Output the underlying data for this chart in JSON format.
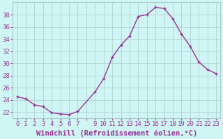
{
  "x": [
    0,
    1,
    2,
    3,
    4,
    5,
    6,
    7,
    9,
    10,
    11,
    12,
    13,
    14,
    15,
    16,
    17,
    18,
    19,
    20,
    21,
    22,
    23
  ],
  "y": [
    24.5,
    24.2,
    23.2,
    22.9,
    21.9,
    21.7,
    21.6,
    22.1,
    25.3,
    27.5,
    31.0,
    33.0,
    34.5,
    37.7,
    38.0,
    39.2,
    39.0,
    37.3,
    34.8,
    32.8,
    30.2,
    29.0,
    28.3
  ],
  "line_color": "#993399",
  "marker_color": "#993399",
  "bg_color": "#cff5f5",
  "grid_color": "#aacccc",
  "xlabel": "Windchill (Refroidissement éolien,°C)",
  "ylim": [
    21.0,
    40.0
  ],
  "xlim": [
    0,
    23
  ],
  "yticks": [
    22,
    24,
    26,
    28,
    30,
    32,
    34,
    36,
    38
  ],
  "xtick_labels": [
    "0",
    "1",
    "2",
    "3",
    "4",
    "5",
    "6",
    "7",
    "",
    "9",
    "10",
    "11",
    "12",
    "13",
    "14",
    "15",
    "16",
    "17",
    "18",
    "19",
    "20",
    "21",
    "22",
    "23"
  ],
  "font_color": "#993399",
  "tick_fontsize": 6.5,
  "label_fontsize": 7.5
}
